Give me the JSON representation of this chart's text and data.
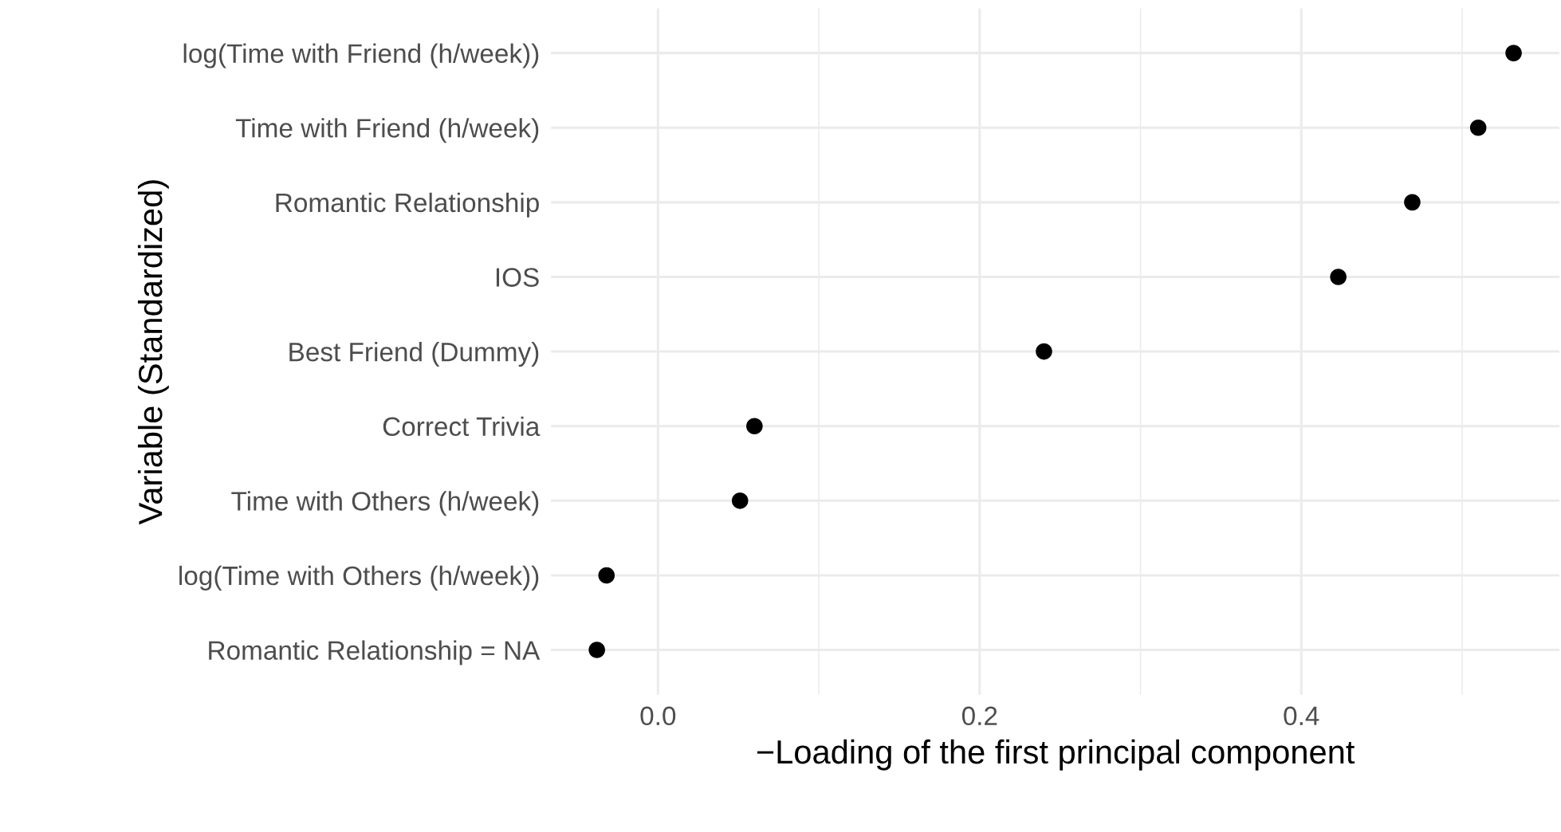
{
  "chart_data": {
    "type": "scatter",
    "orientation": "horizontal",
    "xlabel": "−Loading of the first principal component",
    "ylabel": "Variable (Standardized)",
    "categories": [
      "log(Time with Friend (h/week))",
      "Time with Friend (h/week)",
      "Romantic Relationship",
      "IOS",
      "Best Friend (Dummy)",
      "Correct Trivia",
      "Time with Others (h/week)",
      "log(Time with Others (h/week))",
      "Romantic Relationship = NA"
    ],
    "series": [
      {
        "color": "#000000",
        "values": [
          0.532,
          0.51,
          0.469,
          0.423,
          0.24,
          0.06,
          0.051,
          -0.032,
          -0.038
        ]
      }
    ],
    "xlim": [
      -0.0665,
      0.5605
    ],
    "xticks": [
      {
        "value": 0,
        "label": "0.0"
      },
      {
        "value": 0.2,
        "label": "0.2"
      },
      {
        "value": 0.4,
        "label": "0.4"
      }
    ],
    "grid": true,
    "marker": "circle"
  }
}
